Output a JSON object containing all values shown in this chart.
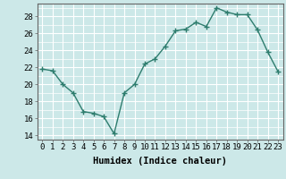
{
  "x": [
    0,
    1,
    2,
    3,
    4,
    5,
    6,
    7,
    8,
    9,
    10,
    11,
    12,
    13,
    14,
    15,
    16,
    17,
    18,
    19,
    20,
    21,
    22,
    23
  ],
  "y": [
    21.8,
    21.6,
    20.0,
    19.0,
    16.8,
    16.6,
    16.2,
    14.2,
    19.0,
    20.0,
    22.4,
    23.0,
    24.5,
    26.3,
    26.5,
    27.3,
    26.8,
    29.0,
    28.5,
    28.2,
    28.2,
    26.4,
    23.8,
    21.5
  ],
  "line_color": "#2e7d6e",
  "marker": "+",
  "bg_color": "#cce8e8",
  "grid_color": "#ffffff",
  "xlabel": "Humidex (Indice chaleur)",
  "ylim": [
    13.5,
    29.5
  ],
  "xlim": [
    -0.5,
    23.5
  ],
  "yticks": [
    14,
    16,
    18,
    20,
    22,
    24,
    26,
    28
  ],
  "xticks": [
    0,
    1,
    2,
    3,
    4,
    5,
    6,
    7,
    8,
    9,
    10,
    11,
    12,
    13,
    14,
    15,
    16,
    17,
    18,
    19,
    20,
    21,
    22,
    23
  ],
  "xlabel_fontsize": 7.5,
  "tick_fontsize": 6.5,
  "line_width": 1.0,
  "marker_size": 4
}
